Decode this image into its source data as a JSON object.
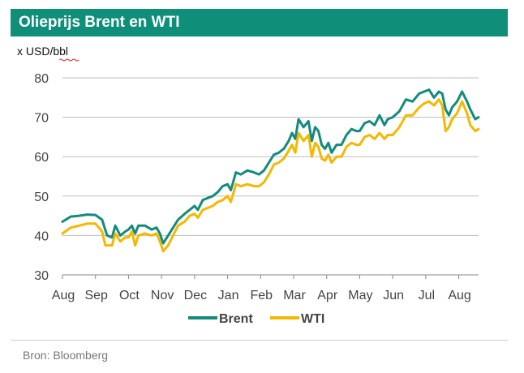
{
  "header": {
    "title": "Olieprijs Brent en WTI"
  },
  "footer": {
    "source": "Bron: Bloomberg"
  },
  "colors": {
    "title_bg": "#0f8f7a",
    "brent": "#138b7d",
    "wti": "#f5b800",
    "grid": "#bdbdbd"
  },
  "chart_data": {
    "type": "line",
    "title": "Olieprijs Brent en WTI",
    "ylabel": "x USD/bbl",
    "xlabel": "",
    "ylim": [
      30,
      80
    ],
    "yticks": [
      30,
      40,
      50,
      60,
      70,
      80
    ],
    "xlim": [
      0,
      12.6
    ],
    "xticks": [
      {
        "label": "Aug",
        "pos": 0
      },
      {
        "label": "Sep",
        "pos": 1
      },
      {
        "label": "Oct",
        "pos": 2
      },
      {
        "label": "Nov",
        "pos": 3
      },
      {
        "label": "Dec",
        "pos": 4
      },
      {
        "label": "Jan",
        "pos": 5
      },
      {
        "label": "Feb",
        "pos": 6
      },
      {
        "label": "Mar",
        "pos": 7
      },
      {
        "label": "Apr",
        "pos": 8
      },
      {
        "label": "May",
        "pos": 9
      },
      {
        "label": "Jun",
        "pos": 10
      },
      {
        "label": "Jul",
        "pos": 11
      },
      {
        "label": "Aug",
        "pos": 12
      }
    ],
    "grid": "horizontal",
    "legend": "bottom-center",
    "series": [
      {
        "name": "Brent",
        "color": "#138b7d",
        "points": [
          [
            0.0,
            43.5
          ],
          [
            0.25,
            44.8
          ],
          [
            0.5,
            45.0
          ],
          [
            0.75,
            45.3
          ],
          [
            1.0,
            45.2
          ],
          [
            1.2,
            44.0
          ],
          [
            1.35,
            40.0
          ],
          [
            1.5,
            39.5
          ],
          [
            1.6,
            42.5
          ],
          [
            1.75,
            40.0
          ],
          [
            1.9,
            41.0
          ],
          [
            2.0,
            41.5
          ],
          [
            2.1,
            42.5
          ],
          [
            2.2,
            40.5
          ],
          [
            2.3,
            42.5
          ],
          [
            2.5,
            42.5
          ],
          [
            2.7,
            41.5
          ],
          [
            2.85,
            42.0
          ],
          [
            2.95,
            40.5
          ],
          [
            3.05,
            38.0
          ],
          [
            3.2,
            40.0
          ],
          [
            3.35,
            42.0
          ],
          [
            3.5,
            44.0
          ],
          [
            3.7,
            45.5
          ],
          [
            3.85,
            46.5
          ],
          [
            4.0,
            47.5
          ],
          [
            4.1,
            46.5
          ],
          [
            4.25,
            49.0
          ],
          [
            4.4,
            49.5
          ],
          [
            4.55,
            50.0
          ],
          [
            4.7,
            51.0
          ],
          [
            4.85,
            52.5
          ],
          [
            5.0,
            53.0
          ],
          [
            5.1,
            51.5
          ],
          [
            5.25,
            56.0
          ],
          [
            5.4,
            55.5
          ],
          [
            5.6,
            56.5
          ],
          [
            5.8,
            56.0
          ],
          [
            5.95,
            55.5
          ],
          [
            6.1,
            56.5
          ],
          [
            6.25,
            58.5
          ],
          [
            6.4,
            60.5
          ],
          [
            6.55,
            61.0
          ],
          [
            6.7,
            62.0
          ],
          [
            6.85,
            64.0
          ],
          [
            6.95,
            66.0
          ],
          [
            7.05,
            64.5
          ],
          [
            7.15,
            69.5
          ],
          [
            7.3,
            67.5
          ],
          [
            7.45,
            69.0
          ],
          [
            7.55,
            64.0
          ],
          [
            7.65,
            67.5
          ],
          [
            7.75,
            66.5
          ],
          [
            7.85,
            63.0
          ],
          [
            7.95,
            62.0
          ],
          [
            8.05,
            63.5
          ],
          [
            8.15,
            61.0
          ],
          [
            8.3,
            63.0
          ],
          [
            8.45,
            63.0
          ],
          [
            8.6,
            65.5
          ],
          [
            8.75,
            67.0
          ],
          [
            8.9,
            66.5
          ],
          [
            9.0,
            66.5
          ],
          [
            9.15,
            68.5
          ],
          [
            9.3,
            69.0
          ],
          [
            9.45,
            68.0
          ],
          [
            9.6,
            70.5
          ],
          [
            9.75,
            68.0
          ],
          [
            9.85,
            69.5
          ],
          [
            10.0,
            70.0
          ],
          [
            10.2,
            71.5
          ],
          [
            10.4,
            74.5
          ],
          [
            10.6,
            74.0
          ],
          [
            10.8,
            76.0
          ],
          [
            10.95,
            76.5
          ],
          [
            11.1,
            77.0
          ],
          [
            11.25,
            75.0
          ],
          [
            11.4,
            76.5
          ],
          [
            11.5,
            76.0
          ],
          [
            11.6,
            72.0
          ],
          [
            11.7,
            70.5
          ],
          [
            11.8,
            72.5
          ],
          [
            11.95,
            74.0
          ],
          [
            12.1,
            76.5
          ],
          [
            12.25,
            74.0
          ],
          [
            12.35,
            72.0
          ],
          [
            12.5,
            69.5
          ],
          [
            12.6,
            70.0
          ]
        ]
      },
      {
        "name": "WTI",
        "color": "#f5b800",
        "points": [
          [
            0.0,
            40.5
          ],
          [
            0.25,
            42.0
          ],
          [
            0.5,
            42.5
          ],
          [
            0.75,
            43.0
          ],
          [
            1.0,
            43.0
          ],
          [
            1.2,
            41.0
          ],
          [
            1.3,
            37.5
          ],
          [
            1.5,
            37.5
          ],
          [
            1.6,
            40.5
          ],
          [
            1.75,
            38.5
          ],
          [
            1.9,
            39.5
          ],
          [
            2.0,
            39.5
          ],
          [
            2.1,
            41.0
          ],
          [
            2.2,
            37.5
          ],
          [
            2.3,
            40.0
          ],
          [
            2.5,
            40.5
          ],
          [
            2.7,
            40.0
          ],
          [
            2.85,
            40.5
          ],
          [
            2.95,
            38.5
          ],
          [
            3.05,
            36.0
          ],
          [
            3.2,
            37.5
          ],
          [
            3.35,
            40.0
          ],
          [
            3.5,
            42.5
          ],
          [
            3.7,
            43.5
          ],
          [
            3.85,
            45.0
          ],
          [
            4.0,
            45.5
          ],
          [
            4.1,
            44.5
          ],
          [
            4.25,
            46.5
          ],
          [
            4.4,
            47.0
          ],
          [
            4.55,
            47.5
          ],
          [
            4.7,
            48.5
          ],
          [
            4.85,
            49.0
          ],
          [
            5.0,
            50.0
          ],
          [
            5.1,
            48.5
          ],
          [
            5.25,
            53.0
          ],
          [
            5.4,
            52.5
          ],
          [
            5.6,
            53.0
          ],
          [
            5.8,
            52.5
          ],
          [
            5.95,
            52.5
          ],
          [
            6.1,
            53.5
          ],
          [
            6.25,
            55.5
          ],
          [
            6.4,
            58.0
          ],
          [
            6.55,
            58.5
          ],
          [
            6.7,
            59.5
          ],
          [
            6.85,
            61.5
          ],
          [
            6.95,
            63.0
          ],
          [
            7.05,
            61.0
          ],
          [
            7.15,
            66.0
          ],
          [
            7.3,
            64.0
          ],
          [
            7.45,
            65.5
          ],
          [
            7.55,
            60.0
          ],
          [
            7.65,
            63.5
          ],
          [
            7.75,
            62.5
          ],
          [
            7.85,
            59.5
          ],
          [
            7.95,
            59.0
          ],
          [
            8.05,
            60.5
          ],
          [
            8.15,
            58.5
          ],
          [
            8.3,
            60.0
          ],
          [
            8.45,
            60.0
          ],
          [
            8.6,
            62.5
          ],
          [
            8.75,
            63.5
          ],
          [
            8.9,
            63.0
          ],
          [
            9.0,
            63.0
          ],
          [
            9.15,
            65.0
          ],
          [
            9.3,
            65.5
          ],
          [
            9.45,
            64.5
          ],
          [
            9.6,
            66.0
          ],
          [
            9.75,
            64.5
          ],
          [
            9.85,
            65.5
          ],
          [
            10.0,
            65.5
          ],
          [
            10.2,
            67.5
          ],
          [
            10.4,
            70.5
          ],
          [
            10.6,
            70.5
          ],
          [
            10.8,
            72.5
          ],
          [
            10.95,
            73.5
          ],
          [
            11.1,
            74.0
          ],
          [
            11.25,
            73.0
          ],
          [
            11.4,
            74.5
          ],
          [
            11.5,
            73.0
          ],
          [
            11.6,
            66.5
          ],
          [
            11.7,
            67.5
          ],
          [
            11.8,
            69.5
          ],
          [
            11.95,
            71.0
          ],
          [
            12.1,
            74.0
          ],
          [
            12.25,
            71.0
          ],
          [
            12.35,
            68.0
          ],
          [
            12.5,
            66.5
          ],
          [
            12.6,
            67.0
          ]
        ]
      }
    ]
  }
}
